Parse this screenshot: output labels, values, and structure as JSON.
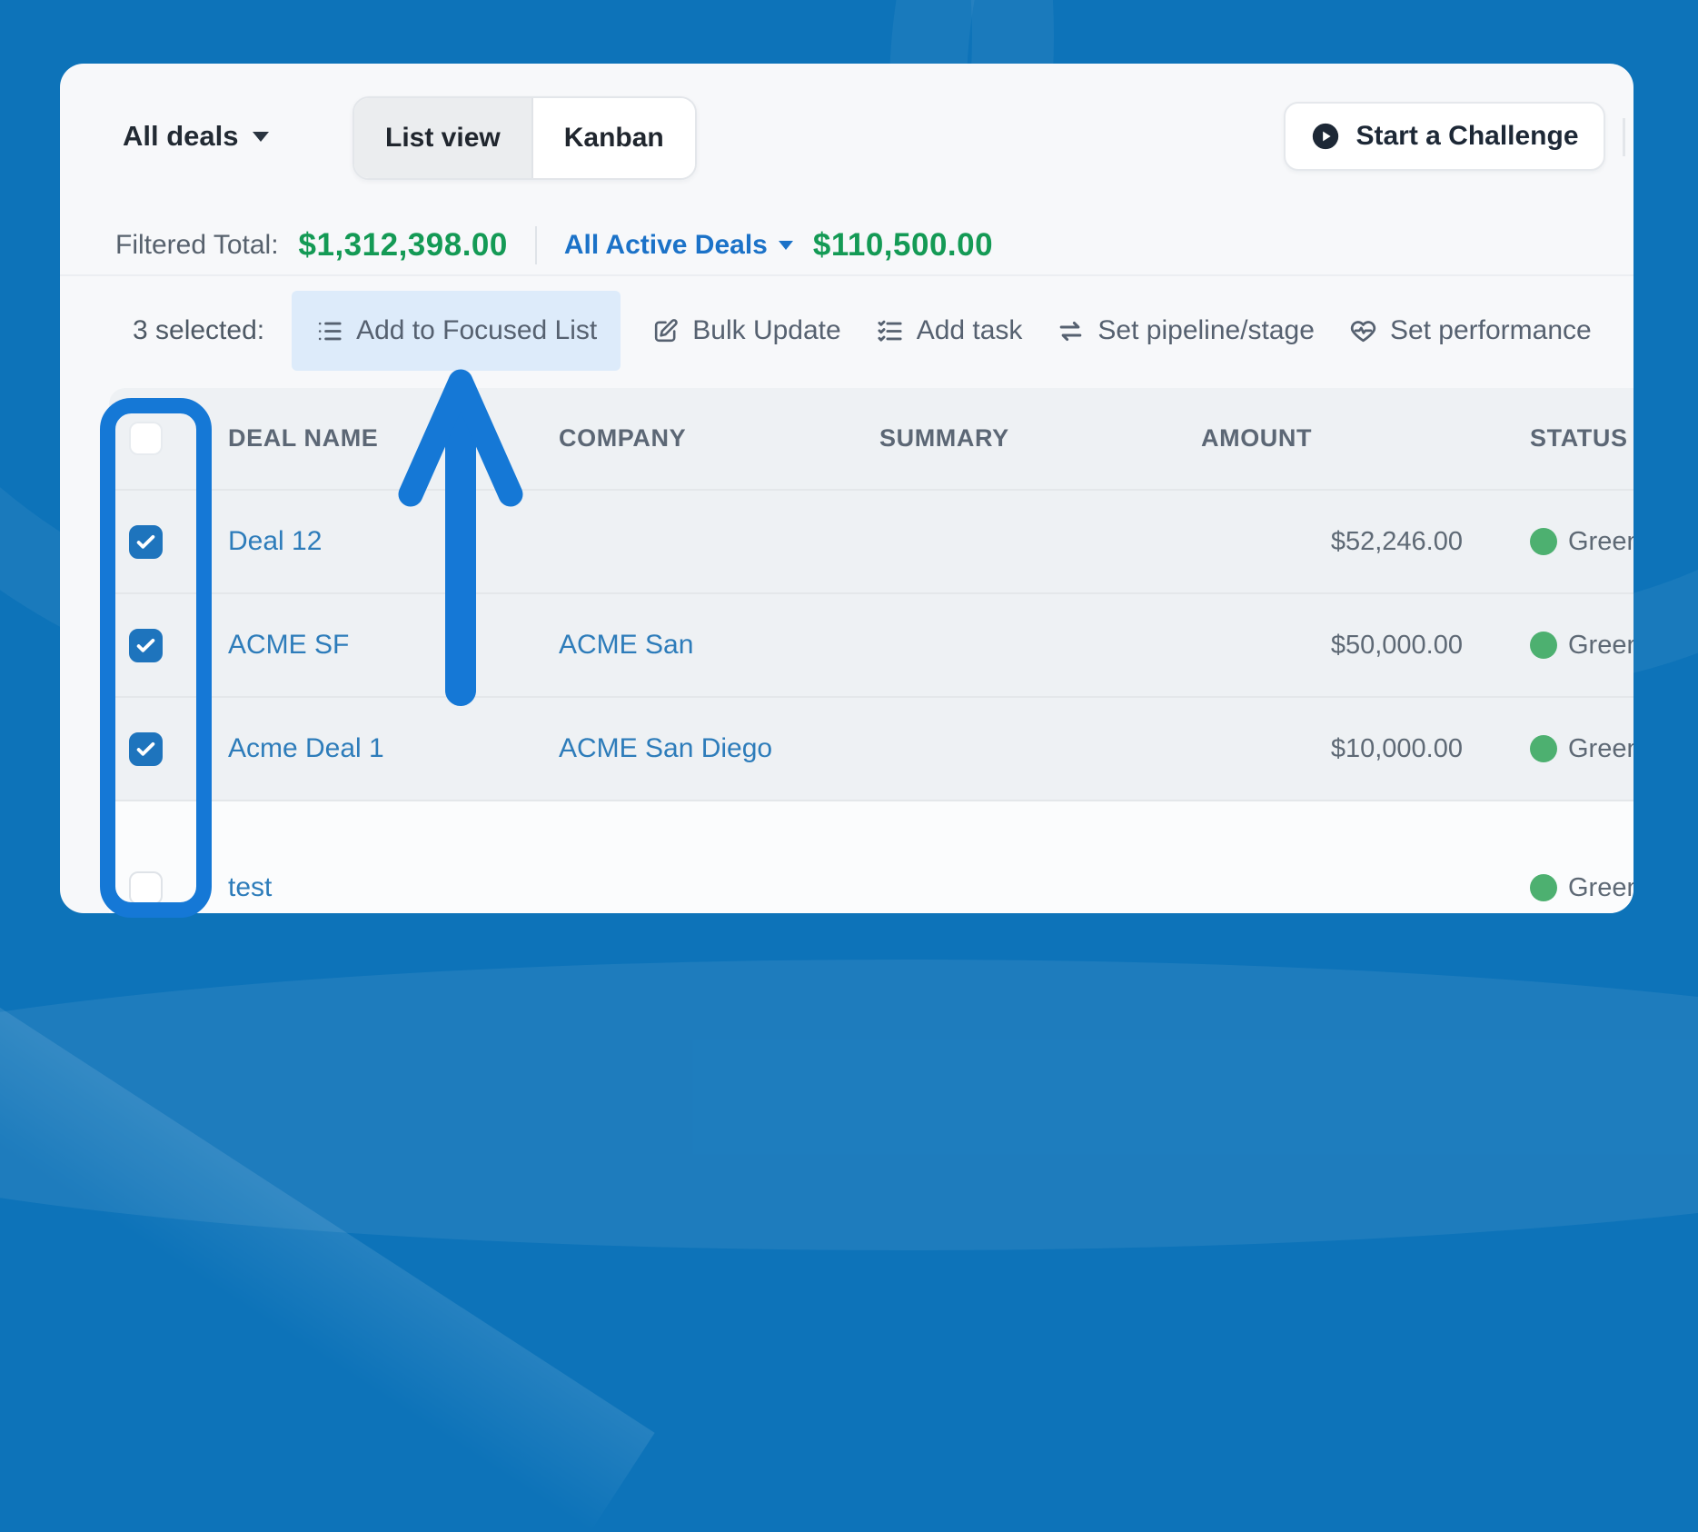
{
  "topbar": {
    "filter_dropdown_label": "All deals",
    "view_toggle": [
      {
        "label": "List view",
        "active": true
      },
      {
        "label": "Kanban",
        "active": false
      }
    ],
    "challenge_button_label": "Start a Challenge"
  },
  "totals": {
    "filtered_label": "Filtered Total:",
    "filtered_amount": "$1,312,398.00",
    "active_filter_label": "All Active Deals",
    "active_amount": "$110,500.00"
  },
  "bulk_bar": {
    "selected_label": "3 selected:",
    "actions": [
      {
        "label": "Add to Focused List",
        "icon": "list-icon",
        "highlighted": true
      },
      {
        "label": "Bulk Update",
        "icon": "edit-icon",
        "highlighted": false
      },
      {
        "label": "Add task",
        "icon": "task-list-icon",
        "highlighted": false
      },
      {
        "label": "Set pipeline/stage",
        "icon": "swap-icon",
        "highlighted": false
      },
      {
        "label": "Set performance",
        "icon": "heart-pulse-icon",
        "highlighted": false
      }
    ]
  },
  "table": {
    "columns": [
      "DEAL NAME",
      "COMPANY",
      "SUMMARY",
      "AMOUNT",
      "STATUS"
    ],
    "rows": [
      {
        "checked": true,
        "deal_name": "Deal 12",
        "company": "",
        "summary": "",
        "amount": "$52,246.00",
        "status": "Green"
      },
      {
        "checked": true,
        "deal_name": "ACME SF",
        "company": "ACME San",
        "summary": "",
        "amount": "$50,000.00",
        "status": "Green"
      },
      {
        "checked": true,
        "deal_name": "Acme Deal 1",
        "company": "ACME San Diego",
        "summary": "",
        "amount": "$10,000.00",
        "status": "Green"
      },
      {
        "checked": false,
        "deal_name": "test",
        "company": "",
        "summary": "",
        "amount": "",
        "status": "Green"
      }
    ]
  },
  "colors": {
    "page_background": "#0d73b9",
    "annotation_blue": "#1578d6",
    "link_blue": "#2d7cba",
    "amount_green": "#149a55",
    "status_green": "#4db070",
    "active_filter_blue": "#1b72c8",
    "highlight_chip": "#ddebfa",
    "card_background": "#f7f8fa"
  }
}
